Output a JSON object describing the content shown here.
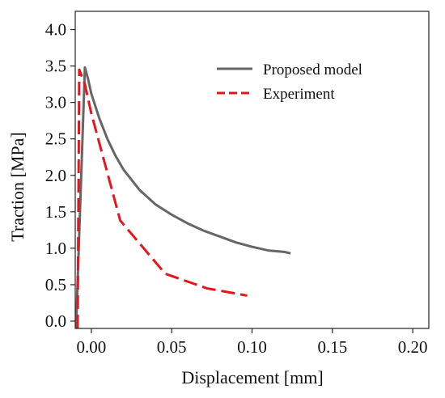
{
  "chart_data": {
    "type": "line",
    "title": "",
    "xlabel": "Displacement [mm]",
    "ylabel": "Traction [MPa]",
    "xlim": [
      -0.01,
      0.21
    ],
    "ylim": [
      -0.1,
      4.25
    ],
    "xticks": [
      0.0,
      0.05,
      0.1,
      0.15,
      0.2
    ],
    "xtick_labels": [
      "0.00",
      "0.05",
      "0.10",
      "0.15",
      "0.20"
    ],
    "yticks": [
      0.0,
      0.5,
      1.0,
      1.5,
      2.0,
      2.5,
      3.0,
      3.5,
      4.0
    ],
    "ytick_labels": [
      "0.0",
      "0.5",
      "1.0",
      "1.5",
      "2.0",
      "2.5",
      "3.0",
      "3.5",
      "4.0"
    ],
    "grid": false,
    "legend_position": "top-right",
    "series": [
      {
        "name": "Proposed model",
        "color": "#666666",
        "style": "solid",
        "x": [
          -0.0095,
          -0.004,
          -0.002,
          0.0,
          0.005,
          0.01,
          0.015,
          0.02,
          0.03,
          0.04,
          0.05,
          0.06,
          0.07,
          0.08,
          0.09,
          0.1,
          0.11,
          0.12,
          0.124
        ],
        "y": [
          -0.1,
          3.48,
          3.32,
          3.12,
          2.78,
          2.5,
          2.27,
          2.08,
          1.8,
          1.6,
          1.46,
          1.34,
          1.24,
          1.16,
          1.08,
          1.02,
          0.97,
          0.95,
          0.93
        ]
      },
      {
        "name": "Experiment",
        "color": "#e8141b",
        "style": "dashed",
        "x": [
          -0.0085,
          -0.0075,
          -0.004,
          0.0,
          0.018,
          0.046,
          0.072,
          0.097
        ],
        "y": [
          -0.1,
          3.45,
          3.25,
          2.85,
          1.38,
          0.65,
          0.45,
          0.35
        ]
      }
    ]
  }
}
